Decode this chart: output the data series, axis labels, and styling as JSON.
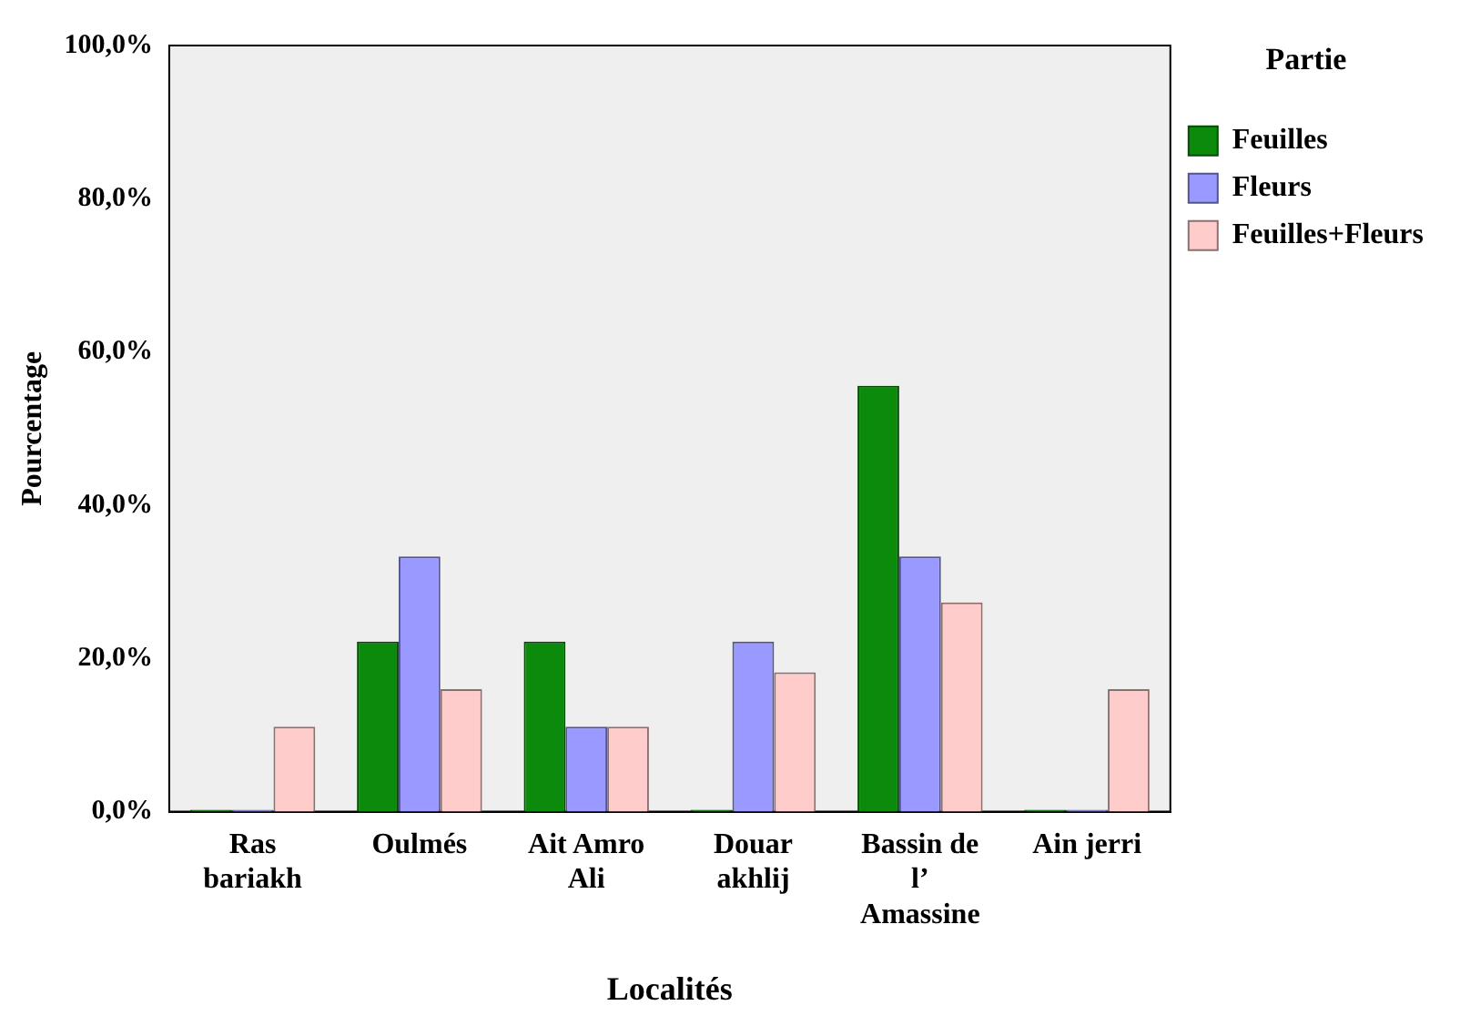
{
  "chart_data": {
    "type": "bar",
    "xlabel": "Localités",
    "ylabel": "Pourcentage",
    "legend_title": "Partie",
    "legend": "right",
    "categories": [
      "Ras bariakh",
      "Oulmés",
      "Ait Amro Ali",
      "Douar akhlij",
      "Bassin de l’ Amassine",
      "Ain jerri"
    ],
    "series": [
      {
        "name": "Feuilles",
        "color": "#0b8a0b",
        "values": [
          0,
          22.2,
          22.2,
          0,
          55.6,
          0
        ]
      },
      {
        "name": "Fleurs",
        "color": "#9999ff",
        "values": [
          0,
          33.3,
          11.1,
          22.2,
          33.3,
          0
        ]
      },
      {
        "name": "Feuilles+Fleurs",
        "color": "#ffcccc",
        "values": [
          11.1,
          16,
          11.1,
          18.2,
          27.3,
          16
        ]
      }
    ],
    "ylim": [
      0,
      100
    ],
    "yticks": [
      {
        "value": 0,
        "label": "0,0%"
      },
      {
        "value": 20,
        "label": "20,0%"
      },
      {
        "value": 40,
        "label": "40,0%"
      },
      {
        "value": 60,
        "label": "60,0%"
      },
      {
        "value": 80,
        "label": "80,0%"
      },
      {
        "value": 100,
        "label": "100,0%"
      }
    ],
    "grid": false
  }
}
